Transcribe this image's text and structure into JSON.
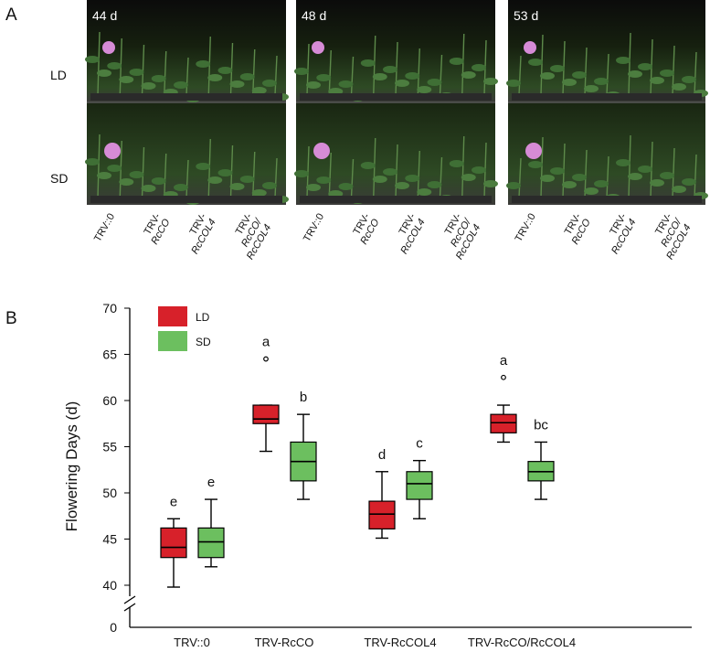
{
  "panel_a": {
    "label": "A",
    "photos": [
      {
        "label": "44 d"
      },
      {
        "label": "48 d"
      },
      {
        "label": "53 d"
      }
    ],
    "rows": [
      "LD",
      "SD"
    ],
    "genotypes": [
      [
        "TRV::0"
      ],
      [
        "TRV-",
        "RcCO"
      ],
      [
        "TRV-",
        "RcCOL4"
      ],
      [
        "TRV-",
        "RcCO/",
        "RcCOL4"
      ]
    ]
  },
  "chart_data": {
    "type": "box",
    "panel_label": "B",
    "y_label": "Flowering Days (d)",
    "categories": [
      "TRV::0",
      "TRV-RcCO",
      "TRV-RcCOL4",
      "TRV-RcCO/RcCOL4"
    ],
    "ylim": [
      40,
      70
    ],
    "yticks": [
      40,
      45,
      50,
      55,
      60,
      65,
      70
    ],
    "y_break_tick": 0,
    "legend": "upper left",
    "series": [
      {
        "name": "LD",
        "color": "#d7212a",
        "boxes": [
          {
            "whislo": 39.8,
            "q1": 43.0,
            "med": 44.1,
            "q3": 46.2,
            "whishi": 47.2,
            "fliers": []
          },
          {
            "whislo": 54.5,
            "q1": 57.5,
            "med": 58.0,
            "q3": 59.5,
            "whishi": 59.5,
            "fliers": [
              64.5
            ]
          },
          {
            "whislo": 45.1,
            "q1": 46.1,
            "med": 47.7,
            "q3": 49.1,
            "whishi": 52.3,
            "fliers": []
          },
          {
            "whislo": 55.5,
            "q1": 56.5,
            "med": 57.6,
            "q3": 58.5,
            "whishi": 59.5,
            "fliers": [
              62.5
            ]
          }
        ],
        "letters": [
          "e",
          "a",
          "d",
          "a"
        ]
      },
      {
        "name": "SD",
        "color": "#6cbf5f",
        "boxes": [
          {
            "whislo": 42.0,
            "q1": 43.0,
            "med": 44.7,
            "q3": 46.2,
            "whishi": 49.3,
            "fliers": []
          },
          {
            "whislo": 49.3,
            "q1": 51.3,
            "med": 53.4,
            "q3": 55.5,
            "whishi": 58.5,
            "fliers": []
          },
          {
            "whislo": 47.2,
            "q1": 49.3,
            "med": 51.0,
            "q3": 52.3,
            "whishi": 53.5,
            "fliers": []
          },
          {
            "whislo": 49.3,
            "q1": 51.3,
            "med": 52.3,
            "q3": 53.4,
            "whishi": 55.5,
            "fliers": []
          }
        ],
        "letters": [
          "e",
          "b",
          "c",
          "bc"
        ]
      }
    ]
  }
}
